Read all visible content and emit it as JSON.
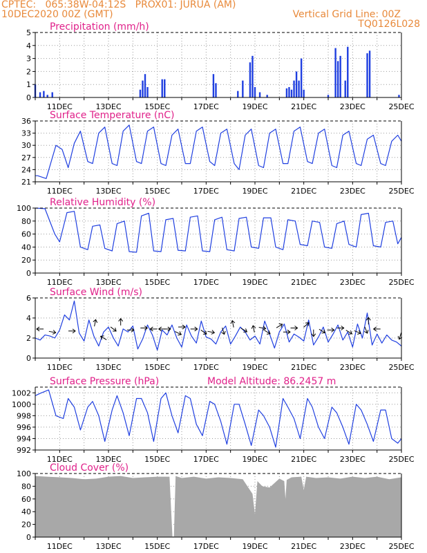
{
  "header": {
    "line1": "CPTEC:   065:38W-04:12S   PROX01: JURUA (AM)",
    "line2": "10DEC2020 00Z (GMT)",
    "right1": "Vertical Grid Line: 00Z",
    "right2": "TQ0126L028"
  },
  "colors": {
    "header": "#e8893a",
    "title": "#e0218a",
    "series": "#1f3fe0",
    "cloud": "#a8a8a8"
  },
  "x_axis": {
    "day_start": 10,
    "day_end": 25,
    "tick_days": [
      11,
      13,
      15,
      17,
      19,
      21,
      23,
      25
    ],
    "tick_labels": [
      "11DEC",
      "13DEC",
      "15DEC",
      "17DEC",
      "19DEC",
      "21DEC",
      "23DEC",
      "25DEC"
    ]
  },
  "chart_data": [
    {
      "type": "bar",
      "title": "Precipitation (mm/h)",
      "ylim": [
        0,
        5
      ],
      "yticks": [
        0,
        1,
        2,
        3,
        4,
        5
      ],
      "x": [
        10.0,
        10.2,
        10.35,
        10.5,
        10.7,
        14.3,
        14.4,
        14.5,
        14.6,
        15.2,
        15.3,
        17.3,
        17.4,
        18.3,
        18.5,
        18.8,
        18.9,
        19.0,
        19.2,
        19.5,
        20.3,
        20.4,
        20.5,
        20.6,
        20.7,
        20.8,
        20.9,
        21.0,
        22.0,
        22.3,
        22.4,
        22.5,
        22.7,
        22.8,
        23.6,
        23.7,
        24.9
      ],
      "values": [
        1.0,
        0.4,
        0.5,
        0.2,
        0.4,
        0.6,
        1.3,
        1.8,
        0.8,
        1.4,
        1.4,
        1.8,
        1.1,
        0.5,
        1.3,
        2.7,
        3.2,
        0.8,
        0.4,
        0.2,
        0.7,
        0.8,
        0.6,
        1.3,
        2.0,
        1.3,
        3.0,
        0.6,
        0.2,
        3.8,
        2.8,
        3.2,
        1.3,
        3.9,
        3.4,
        3.6,
        0.2
      ]
    },
    {
      "type": "line",
      "title": "Surface Temperature (nC)",
      "ylim": [
        21,
        36
      ],
      "yticks": [
        21,
        24,
        27,
        30,
        33,
        36
      ],
      "x": [
        10.0,
        10.1,
        10.45,
        10.85,
        11.1,
        11.35,
        11.6,
        11.85,
        12.15,
        12.35,
        12.6,
        12.85,
        13.15,
        13.35,
        13.6,
        13.85,
        14.15,
        14.35,
        14.6,
        14.85,
        15.15,
        15.35,
        15.6,
        15.85,
        16.15,
        16.35,
        16.6,
        16.85,
        17.15,
        17.35,
        17.6,
        17.85,
        18.15,
        18.35,
        18.6,
        18.85,
        19.15,
        19.35,
        19.6,
        19.85,
        20.15,
        20.35,
        20.6,
        20.85,
        21.15,
        21.35,
        21.6,
        21.85,
        22.15,
        22.35,
        22.6,
        22.85,
        23.15,
        23.35,
        23.6,
        23.85,
        24.15,
        24.35,
        24.6,
        24.85,
        25.0
      ],
      "values": [
        22.5,
        22.5,
        21.8,
        30.0,
        29.0,
        24.5,
        30.5,
        33.5,
        26.0,
        25.5,
        33.0,
        34.5,
        25.5,
        25.0,
        33.5,
        35.0,
        26.0,
        25.5,
        33.5,
        34.5,
        25.5,
        25.0,
        32.5,
        34.0,
        25.5,
        25.5,
        33.5,
        34.5,
        26.0,
        25.0,
        33.0,
        34.0,
        25.5,
        24.0,
        32.5,
        34.0,
        25.0,
        24.5,
        33.0,
        34.0,
        25.5,
        25.5,
        33.5,
        34.5,
        26.0,
        25.5,
        33.0,
        34.0,
        25.0,
        24.5,
        32.5,
        33.5,
        25.5,
        25.0,
        31.5,
        32.5,
        25.5,
        25.0,
        31.0,
        32.5,
        31.0
      ]
    },
    {
      "type": "line",
      "title": "Relative Humidity (%)",
      "ylim": [
        0,
        100
      ],
      "yticks": [
        0,
        20,
        40,
        60,
        80,
        100
      ],
      "x": [
        10.0,
        10.4,
        10.8,
        11.0,
        11.3,
        11.6,
        11.85,
        12.15,
        12.35,
        12.65,
        12.85,
        13.15,
        13.35,
        13.65,
        13.85,
        14.15,
        14.35,
        14.65,
        14.85,
        15.15,
        15.35,
        15.65,
        15.85,
        16.15,
        16.35,
        16.65,
        16.85,
        17.15,
        17.35,
        17.65,
        17.85,
        18.15,
        18.35,
        18.65,
        18.85,
        19.15,
        19.35,
        19.65,
        19.85,
        20.15,
        20.35,
        20.65,
        20.85,
        21.15,
        21.35,
        21.65,
        21.85,
        22.15,
        22.35,
        22.65,
        22.85,
        23.15,
        23.35,
        23.65,
        23.85,
        24.15,
        24.35,
        24.65,
        24.85,
        25.0
      ],
      "values": [
        100,
        99,
        60,
        48,
        93,
        95,
        40,
        36,
        72,
        74,
        38,
        34,
        76,
        80,
        33,
        32,
        88,
        92,
        34,
        33,
        82,
        84,
        35,
        34,
        86,
        88,
        34,
        33,
        82,
        86,
        36,
        34,
        84,
        86,
        40,
        38,
        85,
        85,
        40,
        36,
        82,
        80,
        44,
        42,
        80,
        78,
        40,
        38,
        76,
        80,
        44,
        40,
        90,
        92,
        42,
        40,
        78,
        80,
        45,
        55
      ]
    },
    {
      "type": "line",
      "title": "Surface Wind (m/s)",
      "ylim": [
        0,
        6
      ],
      "yticks": [
        0,
        2,
        4,
        6
      ],
      "x": [
        10.0,
        10.2,
        10.4,
        10.6,
        10.8,
        11.0,
        11.2,
        11.4,
        11.6,
        11.8,
        12.0,
        12.2,
        12.4,
        12.6,
        12.8,
        13.0,
        13.2,
        13.4,
        13.6,
        13.8,
        14.0,
        14.2,
        14.4,
        14.6,
        14.8,
        15.0,
        15.2,
        15.4,
        15.6,
        15.8,
        16.0,
        16.2,
        16.4,
        16.6,
        16.8,
        17.0,
        17.2,
        17.4,
        17.6,
        17.8,
        18.0,
        18.2,
        18.4,
        18.6,
        18.8,
        19.0,
        19.2,
        19.4,
        19.6,
        19.8,
        20.0,
        20.2,
        20.4,
        20.6,
        20.8,
        21.0,
        21.2,
        21.4,
        21.6,
        21.8,
        22.0,
        22.2,
        22.4,
        22.6,
        22.8,
        23.0,
        23.2,
        23.4,
        23.6,
        23.8,
        24.0,
        24.2,
        24.4,
        24.6,
        24.8,
        25.0
      ],
      "values": [
        2.0,
        1.8,
        2.3,
        2.2,
        2.0,
        2.8,
        4.3,
        3.8,
        5.7,
        2.5,
        1.7,
        3.8,
        2.2,
        1.2,
        2.6,
        3.1,
        2.0,
        1.2,
        2.9,
        2.6,
        3.2,
        0.9,
        1.9,
        3.3,
        2.3,
        0.8,
        2.8,
        2.3,
        3.3,
        2.0,
        1.1,
        3.3,
        2.2,
        1.5,
        3.7,
        2.1,
        1.9,
        1.4,
        2.6,
        3.2,
        1.4,
        2.2,
        3.1,
        2.6,
        1.8,
        2.2,
        1.4,
        3.7,
        2.4,
        1.0,
        2.6,
        3.4,
        1.6,
        2.4,
        2.1,
        1.7,
        3.8,
        1.3,
        2.1,
        3.1,
        1.6,
        2.4,
        3.3,
        1.8,
        2.6,
        1.1,
        3.4,
        2.0,
        4.5,
        1.3,
        2.4,
        1.5,
        2.3,
        1.8,
        1.6,
        1.2
      ],
      "arrows": [
        {
          "x": 10.2,
          "y": 2.9,
          "dx": -1,
          "dy": 0
        },
        {
          "x": 10.7,
          "y": 2.6,
          "dx": 1,
          "dy": 0.2
        },
        {
          "x": 11.5,
          "y": 2.7,
          "dx": 1,
          "dy": 0
        },
        {
          "x": 12.45,
          "y": 3.5,
          "dx": 0.2,
          "dy": -1
        },
        {
          "x": 12.8,
          "y": 2.0,
          "dx": -1,
          "dy": -0.6
        },
        {
          "x": 13.2,
          "y": 2.9,
          "dx": 0.8,
          "dy": 0.6
        },
        {
          "x": 13.5,
          "y": 3.6,
          "dx": 0,
          "dy": -1
        },
        {
          "x": 13.9,
          "y": 2.8,
          "dx": 1,
          "dy": 0
        },
        {
          "x": 14.45,
          "y": 3.0,
          "dx": 1,
          "dy": 0
        },
        {
          "x": 14.85,
          "y": 2.9,
          "dx": -1,
          "dy": 0
        },
        {
          "x": 15.2,
          "y": 2.9,
          "dx": -1,
          "dy": 0
        },
        {
          "x": 15.4,
          "y": 2.9,
          "dx": 1,
          "dy": 0
        },
        {
          "x": 15.85,
          "y": 2.5,
          "dx": 1,
          "dy": 0.5
        },
        {
          "x": 16.0,
          "y": 3.1,
          "dx": 1,
          "dy": 0
        },
        {
          "x": 16.5,
          "y": 2.9,
          "dx": 1,
          "dy": 0
        },
        {
          "x": 16.9,
          "y": 2.6,
          "dx": 1,
          "dy": 0.7
        },
        {
          "x": 17.2,
          "y": 2.6,
          "dx": 1,
          "dy": 0.2
        },
        {
          "x": 18.1,
          "y": 3.4,
          "dx": -0.2,
          "dy": -1
        },
        {
          "x": 17.7,
          "y": 2.7,
          "dx": 0.3,
          "dy": 1
        },
        {
          "x": 18.55,
          "y": 2.8,
          "dx": 1,
          "dy": 0.6
        },
        {
          "x": 18.95,
          "y": 2.9,
          "dx": -0.2,
          "dy": -1
        },
        {
          "x": 19.3,
          "y": 3.0,
          "dx": 1,
          "dy": 0.2
        },
        {
          "x": 19.5,
          "y": 2.6,
          "dx": 1,
          "dy": 0.6
        },
        {
          "x": 20.0,
          "y": 3.2,
          "dx": 1,
          "dy": -0.6
        },
        {
          "x": 20.3,
          "y": 2.6,
          "dx": 1,
          "dy": 0
        },
        {
          "x": 20.6,
          "y": 3.0,
          "dx": 1,
          "dy": 0
        },
        {
          "x": 21.1,
          "y": 3.3,
          "dx": 0.8,
          "dy": -0.7
        },
        {
          "x": 21.4,
          "y": 2.5,
          "dx": 0,
          "dy": 1
        },
        {
          "x": 21.75,
          "y": 2.7,
          "dx": 1,
          "dy": 0.6
        },
        {
          "x": 22.1,
          "y": 2.8,
          "dx": 1,
          "dy": 0
        },
        {
          "x": 22.5,
          "y": 3.0,
          "dx": 1,
          "dy": 0
        },
        {
          "x": 22.85,
          "y": 2.6,
          "dx": 1,
          "dy": 0.6
        },
        {
          "x": 23.2,
          "y": 2.6,
          "dx": 1,
          "dy": 0.4
        },
        {
          "x": 23.55,
          "y": 2.8,
          "dx": 0.4,
          "dy": 1
        },
        {
          "x": 23.65,
          "y": 3.7,
          "dx": 0,
          "dy": -1
        },
        {
          "x": 24.0,
          "y": 2.9,
          "dx": -1,
          "dy": 0
        },
        {
          "x": 24.95,
          "y": 2.2,
          "dx": -0.3,
          "dy": 1
        }
      ]
    },
    {
      "type": "line",
      "title": "Surface Pressure (hPa)",
      "subtitle": "Model Altitude: 86.2457 m",
      "ylim": [
        992,
        1003
      ],
      "yticks": [
        992,
        994,
        996,
        998,
        1000,
        1002
      ],
      "x": [
        10.0,
        10.2,
        10.55,
        10.85,
        11.15,
        11.35,
        11.6,
        11.85,
        12.15,
        12.35,
        12.6,
        12.85,
        13.15,
        13.35,
        13.6,
        13.85,
        14.15,
        14.35,
        14.6,
        14.85,
        15.15,
        15.35,
        15.6,
        15.85,
        16.15,
        16.35,
        16.6,
        16.85,
        17.15,
        17.35,
        17.6,
        17.85,
        18.15,
        18.35,
        18.6,
        18.85,
        19.15,
        19.35,
        19.6,
        19.85,
        20.15,
        20.35,
        20.6,
        20.85,
        21.15,
        21.35,
        21.6,
        21.85,
        22.15,
        22.35,
        22.6,
        22.85,
        23.15,
        23.35,
        23.6,
        23.85,
        24.15,
        24.35,
        24.6,
        24.85,
        25.0
      ],
      "values": [
        1001.5,
        1001.9,
        1002.5,
        998.0,
        997.5,
        1001.0,
        999.5,
        995.5,
        999.5,
        1000.5,
        998.0,
        993.5,
        999.0,
        1001.5,
        998.5,
        994.5,
        1001.0,
        1001.0,
        998.5,
        993.5,
        1001.0,
        1002.0,
        998.0,
        995.0,
        1001.5,
        1001.0,
        996.5,
        994.5,
        1000.5,
        1000.0,
        997.0,
        993.0,
        1000.0,
        1000.0,
        996.5,
        992.8,
        999.0,
        998.0,
        996.0,
        992.5,
        1001.0,
        999.5,
        997.5,
        994.0,
        1001.0,
        999.5,
        996.0,
        994.0,
        999.5,
        998.5,
        996.0,
        993.0,
        1000.0,
        999.0,
        996.5,
        993.5,
        999.0,
        999.0,
        994.0,
        993.2,
        994.0
      ]
    },
    {
      "type": "area",
      "title": "Cloud Cover (%)",
      "ylim": [
        0,
        100
      ],
      "yticks": [
        0,
        20,
        40,
        60,
        80,
        100
      ],
      "x": [
        10.0,
        10.5,
        11.0,
        11.5,
        12.0,
        12.5,
        13.0,
        13.5,
        14.0,
        14.5,
        15.0,
        15.5,
        15.62,
        15.68,
        15.75,
        16.0,
        16.5,
        17.0,
        17.5,
        18.0,
        18.5,
        18.9,
        19.0,
        19.1,
        19.3,
        19.6,
        20.0,
        20.2,
        20.25,
        20.3,
        20.5,
        20.9,
        21.0,
        21.1,
        21.5,
        22.0,
        22.5,
        23.0,
        23.5,
        24.0,
        24.5,
        25.0
      ],
      "values": [
        96,
        95,
        94,
        93,
        91,
        92,
        95,
        96,
        93,
        94,
        95,
        95,
        1,
        1,
        96,
        93,
        95,
        92,
        94,
        93,
        91,
        68,
        36,
        88,
        80,
        78,
        92,
        88,
        60,
        90,
        94,
        95,
        74,
        95,
        93,
        94,
        92,
        95,
        93,
        95,
        91,
        94
      ]
    }
  ]
}
